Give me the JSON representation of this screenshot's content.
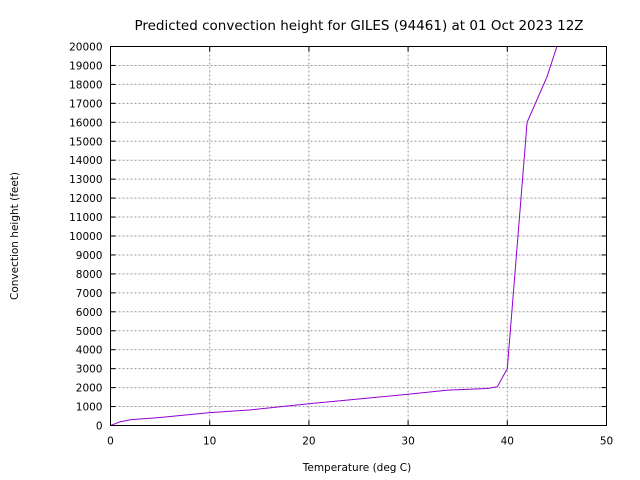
{
  "chart_data": {
    "type": "line",
    "title": "Predicted convection height for GILES (94461) at 01 Oct 2023 12Z",
    "xlabel": "Temperature (deg C)",
    "ylabel": "Convection height (feet)",
    "xlim": [
      0,
      50
    ],
    "ylim": [
      0,
      20000
    ],
    "xticks": [
      0,
      10,
      20,
      30,
      40,
      50
    ],
    "yticks": [
      0,
      1000,
      2000,
      3000,
      4000,
      5000,
      6000,
      7000,
      8000,
      9000,
      10000,
      11000,
      12000,
      13000,
      14000,
      15000,
      16000,
      17000,
      18000,
      19000,
      20000
    ],
    "grid": true,
    "legend": "none",
    "line_color": "#9400d3",
    "series": [
      {
        "x": [
          0,
          1,
          2,
          5,
          10,
          14,
          20,
          25,
          30,
          34,
          38,
          39,
          40,
          42,
          44,
          45
        ],
        "y": [
          0,
          200,
          300,
          420,
          680,
          820,
          1150,
          1400,
          1650,
          1870,
          1950,
          2050,
          3000,
          16000,
          18400,
          20000
        ]
      }
    ]
  }
}
